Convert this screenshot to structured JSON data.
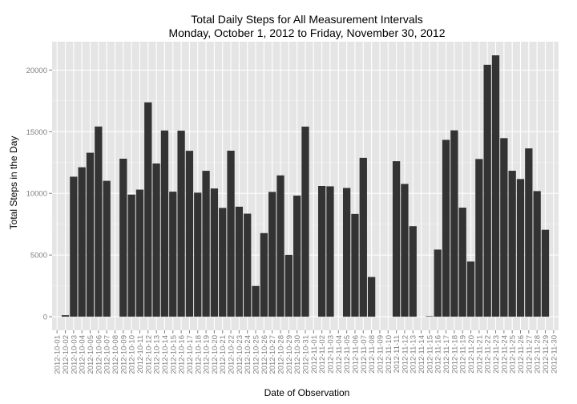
{
  "chart_data": {
    "type": "bar",
    "title": "Total Daily Steps for All Measurement Intervals",
    "subtitle": "Monday, October 1, 2012 to Friday, November 30, 2012",
    "xlabel": "Date of Observation",
    "ylabel": "Total Steps in the Day",
    "ylim": [
      -1100,
      22300
    ],
    "yticks": [
      0,
      5000,
      10000,
      15000,
      20000
    ],
    "ytick_labels": [
      "0",
      "5000",
      "10000",
      "15000",
      "20000"
    ],
    "grid": true,
    "legend": "none",
    "bar_color": "#333333",
    "panel_color": "#e5e5e5",
    "grid_color": "#ffffff",
    "categories": [
      "2012-10-01",
      "2012-10-02",
      "2012-10-03",
      "2012-10-04",
      "2012-10-05",
      "2012-10-06",
      "2012-10-07",
      "2012-10-08",
      "2012-10-09",
      "2012-10-10",
      "2012-10-11",
      "2012-10-12",
      "2012-10-13",
      "2012-10-14",
      "2012-10-15",
      "2012-10-16",
      "2012-10-17",
      "2012-10-18",
      "2012-10-19",
      "2012-10-20",
      "2012-10-21",
      "2012-10-22",
      "2012-10-23",
      "2012-10-24",
      "2012-10-25",
      "2012-10-26",
      "2012-10-27",
      "2012-10-28",
      "2012-10-29",
      "2012-10-30",
      "2012-10-31",
      "2012-11-01",
      "2012-11-02",
      "2012-11-03",
      "2012-11-04",
      "2012-11-05",
      "2012-11-06",
      "2012-11-07",
      "2012-11-08",
      "2012-11-09",
      "2012-11-10",
      "2012-11-11",
      "2012-11-12",
      "2012-11-13",
      "2012-11-14",
      "2012-11-15",
      "2012-11-16",
      "2012-11-17",
      "2012-11-18",
      "2012-11-19",
      "2012-11-20",
      "2012-11-21",
      "2012-11-22",
      "2012-11-23",
      "2012-11-24",
      "2012-11-25",
      "2012-11-26",
      "2012-11-27",
      "2012-11-28",
      "2012-11-29",
      "2012-11-30"
    ],
    "values": [
      0,
      126,
      11352,
      12116,
      13294,
      15420,
      11015,
      0,
      12811,
      9900,
      10304,
      17382,
      12426,
      15098,
      10139,
      15084,
      13452,
      10056,
      11829,
      10395,
      8821,
      13460,
      8918,
      8355,
      2492,
      6778,
      10119,
      11458,
      5018,
      9819,
      15414,
      0,
      10600,
      10571,
      0,
      10439,
      8334,
      12883,
      3219,
      0,
      0,
      12608,
      10765,
      7336,
      0,
      41,
      5441,
      14339,
      15110,
      8841,
      4472,
      12787,
      20427,
      21194,
      14478,
      11834,
      11162,
      13646,
      10183,
      7047,
      0
    ]
  }
}
